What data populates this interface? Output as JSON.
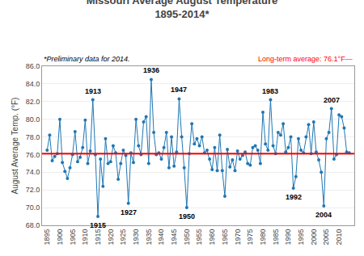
{
  "chart_data": {
    "type": "line",
    "title": "Missouri Average August Temperature",
    "subtitle": "1895-2014*",
    "y_label": "August Average Temp. (°F)",
    "note": "*Preliminary data for 2014.",
    "reference_line": {
      "value": 76.1,
      "label": "Long-term average: 76.1°F—",
      "color": "#FF0000"
    },
    "x": [
      1895,
      1896,
      1897,
      1898,
      1899,
      1900,
      1901,
      1902,
      1903,
      1904,
      1905,
      1906,
      1907,
      1908,
      1909,
      1910,
      1911,
      1912,
      1913,
      1914,
      1915,
      1916,
      1917,
      1918,
      1919,
      1920,
      1921,
      1922,
      1923,
      1924,
      1925,
      1926,
      1927,
      1928,
      1929,
      1930,
      1931,
      1932,
      1933,
      1934,
      1935,
      1936,
      1937,
      1938,
      1939,
      1940,
      1941,
      1942,
      1943,
      1944,
      1945,
      1946,
      1947,
      1948,
      1949,
      1950,
      1951,
      1952,
      1953,
      1954,
      1955,
      1956,
      1957,
      1958,
      1959,
      1960,
      1961,
      1962,
      1963,
      1964,
      1965,
      1966,
      1967,
      1968,
      1969,
      1970,
      1971,
      1972,
      1973,
      1974,
      1975,
      1976,
      1977,
      1978,
      1979,
      1980,
      1981,
      1982,
      1983,
      1984,
      1985,
      1986,
      1987,
      1988,
      1989,
      1990,
      1991,
      1992,
      1993,
      1994,
      1995,
      1996,
      1997,
      1998,
      1999,
      2000,
      2001,
      2002,
      2003,
      2004,
      2005,
      2006,
      2007,
      2008,
      2009,
      2010,
      2011,
      2012,
      2013,
      2014
    ],
    "values": [
      76.5,
      78.2,
      75.3,
      75.8,
      76.1,
      80.0,
      75.1,
      74.1,
      73.3,
      74.5,
      76.0,
      78.6,
      75.2,
      75.7,
      76.8,
      79.9,
      75.0,
      76.4,
      82.2,
      76.0,
      69.0,
      75.5,
      72.4,
      77.8,
      75.0,
      75.2,
      77.0,
      76.2,
      73.2,
      75.0,
      76.5,
      75.9,
      70.5,
      76.2,
      75.1,
      80.0,
      77.0,
      76.0,
      79.7,
      80.3,
      75.0,
      84.5,
      78.5,
      76.0,
      76.2,
      75.5,
      76.8,
      78.5,
      74.5,
      78.0,
      74.7,
      76.3,
      82.3,
      78.0,
      74.5,
      70.0,
      76.1,
      79.5,
      77.2,
      77.8,
      77.0,
      78.0,
      76.2,
      76.5,
      75.5,
      74.3,
      76.8,
      74.2,
      78.2,
      74.2,
      71.3,
      76.6,
      74.6,
      75.4,
      74.2,
      76.4,
      75.5,
      75.9,
      76.3,
      75.0,
      74.8,
      76.8,
      77.0,
      76.5,
      75.0,
      80.8,
      77.2,
      76.5,
      82.2,
      77.0,
      76.1,
      78.5,
      78.2,
      79.5,
      76.3,
      76.8,
      78.0,
      72.2,
      73.5,
      77.8,
      76.5,
      76.2,
      78.0,
      79.4,
      76.1,
      79.7,
      76.3,
      75.4,
      74.0,
      70.2,
      77.8,
      78.5,
      81.2,
      75.5,
      76.0,
      80.5,
      80.3,
      79.0,
      76.3,
      76.2
    ],
    "marker": "circle",
    "xlim": [
      1893,
      2016
    ],
    "xticks": [
      1895,
      1900,
      1905,
      1910,
      1915,
      1920,
      1925,
      1930,
      1935,
      1940,
      1945,
      1950,
      1955,
      1960,
      1965,
      1970,
      1975,
      1980,
      1985,
      1990,
      1995,
      2000,
      2005,
      2010
    ],
    "ylim": [
      68.0,
      86.0
    ],
    "yticks": [
      {
        "value": 68.0,
        "label": "68.0"
      },
      {
        "value": 70.0,
        "label": "70.0"
      },
      {
        "value": 72.0,
        "label": "72.0"
      },
      {
        "value": 74.0,
        "label": "74.0"
      },
      {
        "value": 76.0,
        "label": "76.0"
      },
      {
        "value": 78.0,
        "label": "78.0"
      },
      {
        "value": 80.0,
        "label": "80.0"
      },
      {
        "value": 82.0,
        "label": "82.0"
      },
      {
        "value": 84.0,
        "label": "84.0"
      },
      {
        "value": 86.0,
        "label": "86.0"
      }
    ],
    "grid": "y",
    "annotations": [
      {
        "text": "1913",
        "x": 1913,
        "y": 82.2,
        "position": "above"
      },
      {
        "text": "1915",
        "x": 1915,
        "y": 69.0,
        "position": "below"
      },
      {
        "text": "1927",
        "x": 1927,
        "y": 70.5,
        "position": "below"
      },
      {
        "text": "1936",
        "x": 1936,
        "y": 84.5,
        "position": "above"
      },
      {
        "text": "1947",
        "x": 1947,
        "y": 82.3,
        "position": "above"
      },
      {
        "text": "1950",
        "x": 1950,
        "y": 70.0,
        "position": "below"
      },
      {
        "text": "1983",
        "x": 1983,
        "y": 82.2,
        "position": "above"
      },
      {
        "text": "1992",
        "x": 1992,
        "y": 72.2,
        "position": "below"
      },
      {
        "text": "2004",
        "x": 2004,
        "y": 70.2,
        "position": "below"
      },
      {
        "text": "2007",
        "x": 2007,
        "y": 81.2,
        "position": "above"
      }
    ]
  }
}
